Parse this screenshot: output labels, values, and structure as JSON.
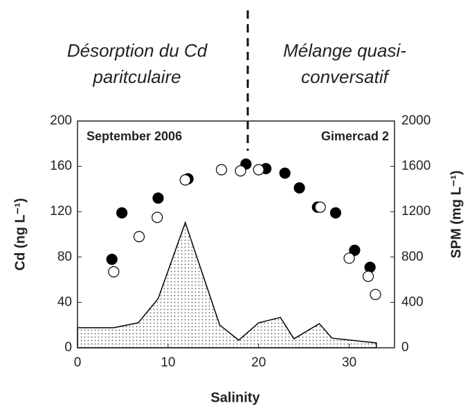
{
  "chart_data": {
    "type": "scatter",
    "annotations": [
      "Désorption du Cd",
      "paritculaire",
      "Mélange quasi-",
      "conversatif"
    ],
    "labels": [
      "September 2006",
      "Gimercad 2"
    ],
    "xlabel": "Salinity",
    "ylabel": "Cd (ng L⁻¹)",
    "y2label": "SPM (mg L⁻¹)",
    "xlim": [
      0,
      35
    ],
    "xticks": [
      0,
      10,
      20,
      30
    ],
    "ylim": [
      0,
      200
    ],
    "yticks": [
      0,
      40,
      80,
      120,
      160,
      200
    ],
    "y2lim": [
      0,
      2000
    ],
    "y2ticks": [
      0,
      400,
      800,
      1200,
      1600,
      2000
    ],
    "series": [
      {
        "kind": "filled",
        "color": "#000000",
        "x": [
          3.8,
          4.9,
          8.9,
          12.2,
          18.6,
          20.8,
          22.9,
          24.5,
          26.5,
          28.5,
          30.6,
          32.3
        ],
        "values": [
          78,
          119,
          132,
          149,
          162,
          158,
          154,
          141,
          124,
          119,
          86,
          71
        ]
      },
      {
        "kind": "open",
        "color": "#000000",
        "x": [
          4.0,
          6.8,
          8.8,
          11.9,
          15.9,
          18.0,
          20.0,
          26.8,
          30.0,
          32.1,
          32.9
        ],
        "values": [
          67,
          98,
          115,
          148,
          157,
          156,
          157,
          124,
          79,
          63,
          47
        ]
      },
      {
        "kind": "area",
        "axis": "y2",
        "color": "#000000",
        "x": [
          0,
          4,
          6.7,
          8.9,
          11.9,
          15.7,
          17.8,
          20,
          22.4,
          23.9,
          26.7,
          28.1,
          33
        ],
        "values": [
          177,
          177,
          220,
          433,
          1104,
          201,
          67,
          220,
          268,
          79,
          213,
          85,
          43
        ]
      }
    ]
  }
}
